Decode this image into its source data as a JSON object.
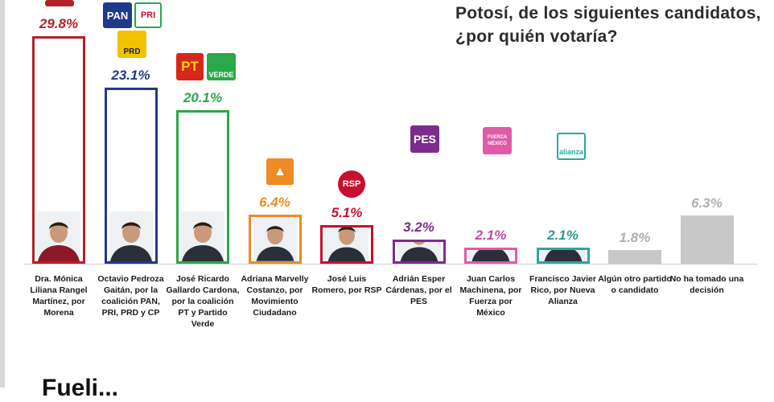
{
  "title_line1": "Potosí, de los siguientes candidatos,",
  "title_line2": "¿por quién votaría?",
  "chart_data": {
    "type": "bar",
    "categories": [
      "Dra. Mónica Liliana Rangel Martínez, por Morena",
      "Octavio Pedroza Gaitán, por la coalición PAN, PRI, PRD y CP",
      "José Ricardo Gallardo Cardona, por la coalición PT y Partido Verde",
      "Adriana Marvelly Costanzo, por Movimiento Ciudadano",
      "José Luis Romero, por RSP",
      "Adrián Esper Cárdenas, por el PES",
      "Juan Carlos Machinena, por Fuerza por México",
      "Francisco Javier Rico, por Nueva Alianza",
      "Algún otro partido o candidato",
      "No ha tomado una decisión"
    ],
    "values": [
      29.8,
      23.1,
      20.1,
      6.4,
      5.1,
      3.2,
      2.1,
      2.1,
      1.8,
      6.3
    ],
    "value_labels": [
      "29.8%",
      "23.1%",
      "20.1%",
      "6.4%",
      "5.1%",
      "3.2%",
      "2.1%",
      "2.1%",
      "1.8%",
      "6.3%"
    ],
    "colors": [
      "#b5202a",
      "#1f3a8a",
      "#2aa84a",
      "#f08a24",
      "#c8102e",
      "#7b2d8e",
      "#e05aa8",
      "#2aa8a0",
      "#c8c8c8",
      "#c8c8c8"
    ],
    "value_colors": [
      "#b5202a",
      "#1f3a8a",
      "#2aa84a",
      "#f08a24",
      "#c8102e",
      "#7b2d8e",
      "#c44a9a",
      "#2a9a92",
      "#b0b0b0",
      "#b0b0b0"
    ],
    "has_photo": [
      true,
      true,
      true,
      true,
      true,
      true,
      true,
      true,
      false,
      false
    ]
  },
  "parties": {
    "pan": "PAN",
    "pri": "PRI",
    "prd": "PRD",
    "pt": "PT",
    "verde": "VERDE",
    "rsp": "RSP",
    "pes": "PES",
    "fxm": "FUERZA MÉXICO",
    "na": "alianza"
  },
  "bottom_text": "Fueli..."
}
